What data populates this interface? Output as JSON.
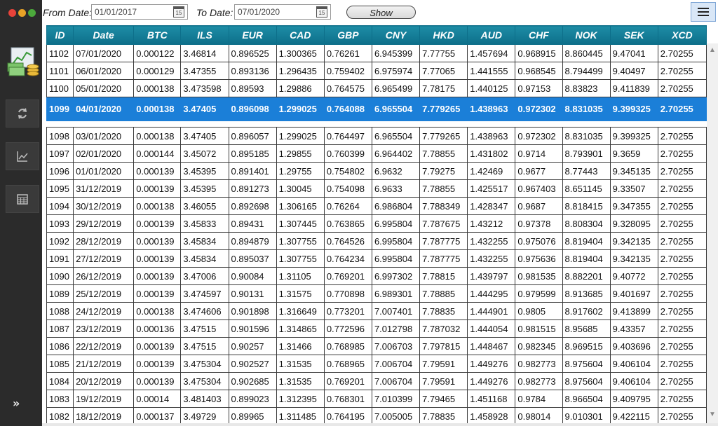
{
  "toolbar": {
    "from_label": "From Date:",
    "from_value": "01/01/2017",
    "to_label": "To Date:",
    "to_value": "07/01/2020",
    "calendar_day": "15",
    "show_label": "Show"
  },
  "table": {
    "columns": [
      "ID",
      "Date",
      "BTC",
      "ILS",
      "EUR",
      "CAD",
      "GBP",
      "CNY",
      "HKD",
      "AUD",
      "CHF",
      "NOK",
      "SEK",
      "XCD"
    ],
    "rows": [
      [
        "1102",
        "07/01/2020",
        "0.000122",
        "3.46814",
        "0.896525",
        "1.300365",
        "0.76261",
        "6.945399",
        "7.77755",
        "1.457694",
        "0.968915",
        "8.860445",
        "9.47041",
        "2.70255"
      ],
      [
        "1101",
        "06/01/2020",
        "0.000129",
        "3.47355",
        "0.893136",
        "1.296435",
        "0.759402",
        "6.975974",
        "7.77065",
        "1.441555",
        "0.968545",
        "8.794499",
        "9.40497",
        "2.70255"
      ],
      [
        "1100",
        "05/01/2020",
        "0.000138",
        "3.473598",
        "0.89593",
        "1.29886",
        "0.764575",
        "6.965499",
        "7.78175",
        "1.440125",
        "0.97153",
        "8.83823",
        "9.411839",
        "2.70255"
      ],
      [
        "1099",
        "04/01/2020",
        "0.000138",
        "3.47405",
        "0.896098",
        "1.299025",
        "0.764088",
        "6.965504",
        "7.779265",
        "1.438963",
        "0.972302",
        "8.831035",
        "9.399325",
        "2.70255"
      ],
      [
        "1098",
        "03/01/2020",
        "0.000138",
        "3.47405",
        "0.896057",
        "1.299025",
        "0.764497",
        "6.965504",
        "7.779265",
        "1.438963",
        "0.972302",
        "8.831035",
        "9.399325",
        "2.70255"
      ],
      [
        "1097",
        "02/01/2020",
        "0.000144",
        "3.45072",
        "0.895185",
        "1.29855",
        "0.760399",
        "6.964402",
        "7.78855",
        "1.431802",
        "0.9714",
        "8.793901",
        "9.3659",
        "2.70255"
      ],
      [
        "1096",
        "01/01/2020",
        "0.000139",
        "3.45395",
        "0.891401",
        "1.29755",
        "0.754802",
        "6.9632",
        "7.79275",
        "1.42469",
        "0.9677",
        "8.77443",
        "9.345135",
        "2.70255"
      ],
      [
        "1095",
        "31/12/2019",
        "0.000139",
        "3.45395",
        "0.891273",
        "1.30045",
        "0.754098",
        "6.9633",
        "7.78855",
        "1.425517",
        "0.967403",
        "8.651145",
        "9.33507",
        "2.70255"
      ],
      [
        "1094",
        "30/12/2019",
        "0.000138",
        "3.46055",
        "0.892698",
        "1.306165",
        "0.76264",
        "6.986804",
        "7.788349",
        "1.428347",
        "0.9687",
        "8.818415",
        "9.347355",
        "2.70255"
      ],
      [
        "1093",
        "29/12/2019",
        "0.000139",
        "3.45833",
        "0.89431",
        "1.307445",
        "0.763865",
        "6.995804",
        "7.787675",
        "1.43212",
        "0.97378",
        "8.808304",
        "9.328095",
        "2.70255"
      ],
      [
        "1092",
        "28/12/2019",
        "0.000139",
        "3.45834",
        "0.894879",
        "1.307755",
        "0.764526",
        "6.995804",
        "7.787775",
        "1.432255",
        "0.975076",
        "8.819404",
        "9.342135",
        "2.70255"
      ],
      [
        "1091",
        "27/12/2019",
        "0.000139",
        "3.45834",
        "0.895037",
        "1.307755",
        "0.764234",
        "6.995804",
        "7.787775",
        "1.432255",
        "0.975636",
        "8.819404",
        "9.342135",
        "2.70255"
      ],
      [
        "1090",
        "26/12/2019",
        "0.000139",
        "3.47006",
        "0.90084",
        "1.31105",
        "0.769201",
        "6.997302",
        "7.78815",
        "1.439797",
        "0.981535",
        "8.882201",
        "9.40772",
        "2.70255"
      ],
      [
        "1089",
        "25/12/2019",
        "0.000139",
        "3.474597",
        "0.90131",
        "1.31575",
        "0.770898",
        "6.989301",
        "7.78885",
        "1.444295",
        "0.979599",
        "8.913685",
        "9.401697",
        "2.70255"
      ],
      [
        "1088",
        "24/12/2019",
        "0.000138",
        "3.474606",
        "0.901898",
        "1.316649",
        "0.773201",
        "7.007401",
        "7.78835",
        "1.444901",
        "0.9805",
        "8.917602",
        "9.413899",
        "2.70255"
      ],
      [
        "1087",
        "23/12/2019",
        "0.000136",
        "3.47515",
        "0.901596",
        "1.314865",
        "0.772596",
        "7.012798",
        "7.787032",
        "1.444054",
        "0.981515",
        "8.95685",
        "9.43357",
        "2.70255"
      ],
      [
        "1086",
        "22/12/2019",
        "0.000139",
        "3.47515",
        "0.90257",
        "1.31466",
        "0.768985",
        "7.006703",
        "7.797815",
        "1.448467",
        "0.982345",
        "8.969515",
        "9.403696",
        "2.70255"
      ],
      [
        "1085",
        "21/12/2019",
        "0.000139",
        "3.475304",
        "0.902527",
        "1.31535",
        "0.768965",
        "7.006704",
        "7.79591",
        "1.449276",
        "0.982773",
        "8.975604",
        "9.406104",
        "2.70255"
      ],
      [
        "1084",
        "20/12/2019",
        "0.000139",
        "3.475304",
        "0.902685",
        "1.31535",
        "0.769201",
        "7.006704",
        "7.79591",
        "1.449276",
        "0.982773",
        "8.975604",
        "9.406104",
        "2.70255"
      ],
      [
        "1083",
        "19/12/2019",
        "0.00014",
        "3.481403",
        "0.899023",
        "1.312395",
        "0.768301",
        "7.010399",
        "7.79465",
        "1.451168",
        "0.9784",
        "8.966504",
        "9.409795",
        "2.70255"
      ],
      [
        "1082",
        "18/12/2019",
        "0.000137",
        "3.49729",
        "0.89965",
        "1.311485",
        "0.764195",
        "7.005005",
        "7.78835",
        "1.458928",
        "0.98014",
        "9.010301",
        "9.422115",
        "2.70255"
      ]
    ],
    "selected_index": 3
  },
  "colors": {
    "sidebar": "#2b2b2b",
    "header": "#0d6f8a",
    "selection": "#1b7fd8"
  },
  "icons": [
    "refresh-icon",
    "trend-chart-icon",
    "calculator-icon",
    "double-chevron-right-icon",
    "hamburger-menu-icon",
    "calendar-icon"
  ]
}
